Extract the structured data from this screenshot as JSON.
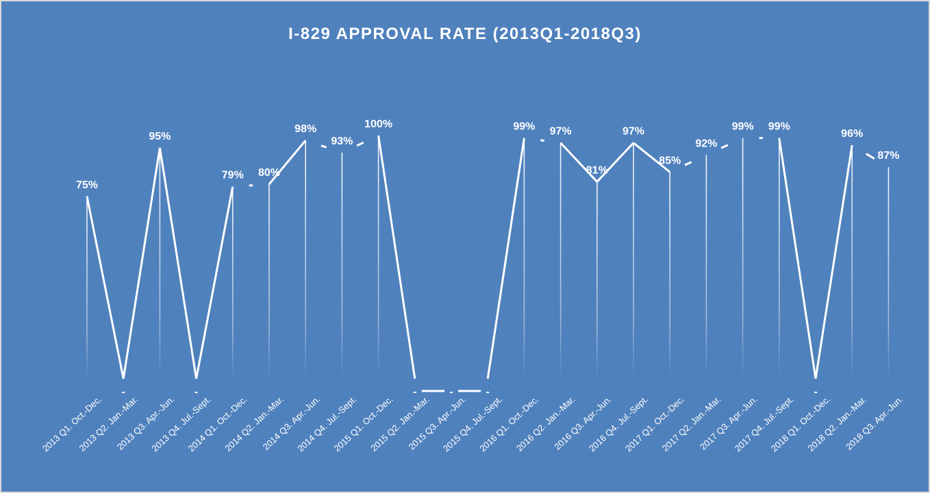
{
  "chart_data": {
    "type": "line",
    "title": "I-829 APPROVAL RATE (2013Q1-2018Q3)",
    "xlabel": "",
    "ylabel": "",
    "ylim": [
      0,
      100
    ],
    "grid": false,
    "legend": "none",
    "colors": {
      "background": "#4f81bd",
      "line": "#ffffff",
      "frame": "#d9d9d9"
    },
    "categories": [
      "2013 Q1. Oct.-Dec.",
      "2013 Q2. Jan.-Mar.",
      "2013 Q3. Apr.-Jun.",
      "2013 Q4. Jul.-Sept.",
      "2014 Q1. Oct.-Dec.",
      "2014 Q2. Jan.-Mar.",
      "2014 Q3. Apr.-Jun.",
      "2014 Q4. Jul.-Sept.",
      "2015 Q1. Oct.-Dec.",
      "2015 Q2. Jan.-Mar.",
      "2015 Q3. Apr.-Jun.",
      "2015 Q4. Jul.-Sept.",
      "2016 Q1. Oct.-Dec.",
      "2016 Q2. Jan.-Mar.",
      "2016 Q3. Apr.-Jun.",
      "2016 Q4. Jul.-Sept.",
      "2017 Q1. Oct.-Dec.",
      "2017 Q2. Jan.-Mar.",
      "2017 Q3. Apr.-Jun.",
      "2017 Q4. Jul.-Sept.",
      "2018 Q1. Oct.-Dec.",
      "2018 Q2. Jan.-Mar.",
      "2018 Q3. Apr.-Jun."
    ],
    "values": [
      75,
      0,
      95,
      0,
      79,
      80,
      98,
      93,
      100,
      0,
      0,
      0,
      99,
      97,
      81,
      97,
      85,
      92,
      99,
      99,
      0,
      96,
      87
    ],
    "data_labels": [
      "75%",
      "-",
      "95%",
      "-",
      "79%",
      "80%",
      "98%",
      "93%",
      "100%",
      "-",
      "-",
      "-",
      "99%",
      "97%",
      "81%",
      "97%",
      "85%",
      "92%",
      "99%",
      "99%",
      "-",
      "96%",
      "87%"
    ]
  }
}
